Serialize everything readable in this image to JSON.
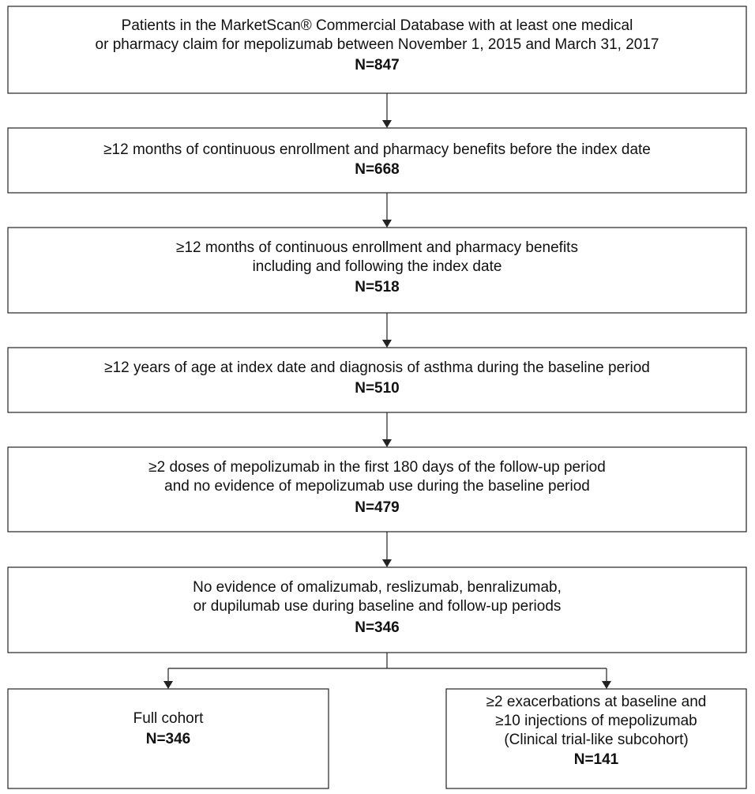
{
  "nodes": [
    {
      "lines": [
        "Patients in the MarketScan® Commercial Database with at least one medical",
        "or pharmacy claim for mepolizumab between November 1, 2015 and March 31, 2017"
      ],
      "count": "N=847"
    },
    {
      "lines": [
        "≥12 months of continuous enrollment and pharmacy benefits before the index date"
      ],
      "count": "N=668"
    },
    {
      "lines": [
        "≥12 months of continuous enrollment and pharmacy benefits",
        "including and following the index date"
      ],
      "count": "N=518"
    },
    {
      "lines": [
        "≥12 years of age at index date and diagnosis of asthma during the baseline period"
      ],
      "count": "N=510"
    },
    {
      "lines": [
        "≥2 doses of mepolizumab in the first 180 days of the follow-up period",
        "and no evidence of mepolizumab use during the baseline period"
      ],
      "count": "N=479"
    },
    {
      "lines": [
        "No evidence of omalizumab, reslizumab, benralizumab,",
        "or dupilumab use during baseline and follow-up periods"
      ],
      "count": "N=346"
    },
    {
      "lines": [
        "Full cohort"
      ],
      "count": "N=346"
    },
    {
      "lines": [
        "≥2 exacerbations at baseline and",
        "≥10 injections of mepolizumab",
        "(Clinical trial-like subcohort)"
      ],
      "count": "N=141"
    }
  ]
}
